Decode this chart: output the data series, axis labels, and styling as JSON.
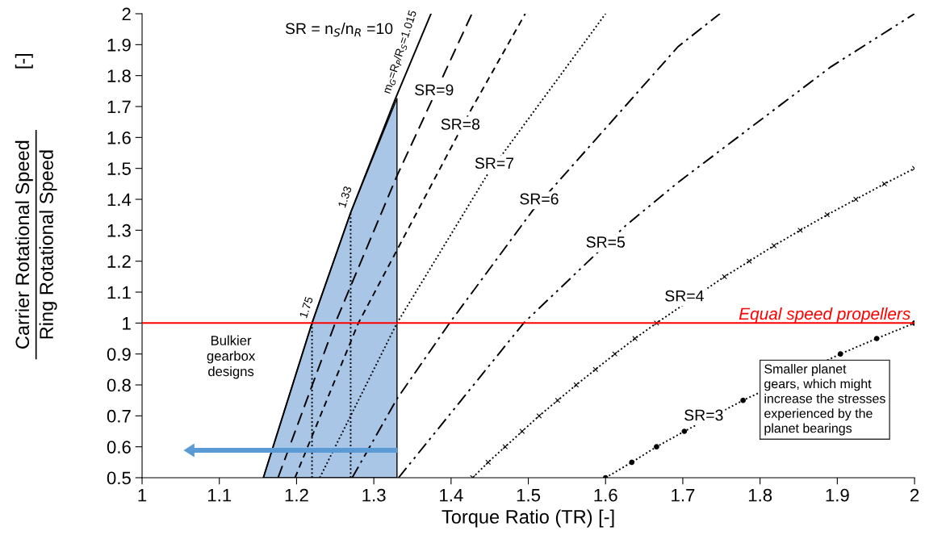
{
  "chart_data": {
    "type": "line",
    "xlabel": "Torque Ratio (TR) [-]",
    "ylabel": "Carrier Rotational Speed\nRing Rotational Speed\n[-]",
    "xlim": [
      1,
      2
    ],
    "xticks": [
      1,
      1.1,
      1.2,
      1.3,
      1.4,
      1.5,
      1.6,
      1.7,
      1.8,
      1.9,
      2
    ],
    "ylim": [
      0.5,
      2
    ],
    "yticks": [
      0.5,
      0.6,
      0.7,
      0.8,
      0.9,
      1,
      1.1,
      1.2,
      1.3,
      1.4,
      1.5,
      1.6,
      1.7,
      1.8,
      1.9,
      2
    ],
    "grid": false,
    "legend": false,
    "series": [
      {
        "type": "area",
        "color": "#a9c6e6",
        "x": [
          1.157,
          1.22,
          1.27,
          1.33
        ],
        "values": [
          0.5,
          1.0,
          1.357,
          1.726
        ]
      },
      {
        "name": "SR = n$_{S}$/n$_{R}$ =10",
        "color": "#000000",
        "line_style": "solid",
        "x": [
          1.157,
          1.22,
          1.27,
          1.328,
          1.374
        ],
        "values": [
          0.5,
          1.0,
          1.357,
          1.726,
          2.0
        ]
      },
      {
        "name": "SR=9",
        "color": "#000000",
        "line_style": "longdash",
        "x": [
          1.176,
          1.25,
          1.33,
          1.427
        ],
        "values": [
          0.5,
          1.0,
          1.476,
          2.0
        ]
      },
      {
        "name": "SR=8",
        "color": "#000000",
        "line_style": "dashed",
        "x": [
          1.198,
          1.28,
          1.33,
          1.426,
          1.496
        ],
        "values": [
          0.5,
          1.0,
          1.236,
          1.69,
          2.0
        ]
      },
      {
        "name": "SR=7",
        "color": "#000000",
        "line_style": "dotted",
        "x": [
          1.23,
          1.33,
          1.446,
          1.6
        ],
        "values": [
          0.5,
          1.0,
          1.476,
          2.0
        ]
      },
      {
        "name": "SR=6",
        "color": "#000000",
        "line_style": "dashdot",
        "x": [
          1.272,
          1.33,
          1.398,
          1.506,
          1.694,
          1.748
        ],
        "values": [
          0.5,
          0.755,
          1.0,
          1.365,
          1.894,
          2.0
        ]
      },
      {
        "name": "SR=5",
        "color": "#000000",
        "line_style": "dashdotdot",
        "x": [
          1.332,
          1.494,
          1.626,
          1.694,
          1.892,
          2.0
        ],
        "values": [
          0.5,
          1.0,
          1.315,
          1.455,
          1.829,
          2.0
        ]
      },
      {
        "name": "SR=4",
        "color": "#000000",
        "line_style": "dotted",
        "marker": "cross",
        "x": [
          1.428,
          1.448,
          1.47,
          1.492,
          1.514,
          1.538,
          1.562,
          1.587,
          1.612,
          1.638,
          1.666,
          1.754,
          1.786,
          1.818,
          1.852,
          1.887,
          1.924,
          1.961,
          2.0
        ],
        "values": [
          0.5,
          0.55,
          0.6,
          0.65,
          0.7,
          0.75,
          0.8,
          0.85,
          0.9,
          0.95,
          1.0,
          1.15,
          1.2,
          1.25,
          1.3,
          1.35,
          1.4,
          1.45,
          1.5
        ]
      },
      {
        "name": "SR=3",
        "color": "#000000",
        "line_style": "dotted",
        "marker": "circle",
        "x": [
          1.6,
          1.634,
          1.666,
          1.702,
          1.778,
          1.904,
          1.951,
          2.0
        ],
        "values": [
          0.5,
          0.55,
          0.6,
          0.65,
          0.75,
          0.9,
          0.95,
          1.0
        ]
      },
      {
        "color": "#000000",
        "line_style": "dotted",
        "x": [
          1.22,
          1.22
        ],
        "values": [
          0.5,
          1.0
        ]
      },
      {
        "color": "#000000",
        "line_style": "dotted",
        "x": [
          1.27,
          1.27
        ],
        "values": [
          0.5,
          1.357
        ]
      }
    ],
    "ref_lines": [
      {
        "axis": "y",
        "value": 1,
        "label": "Equal speed propellers",
        "color": "#ff0000"
      }
    ],
    "annotations": [
      {
        "text": "1.75",
        "x": 1.22,
        "y": 1.0
      },
      {
        "text": "1.33",
        "x": 1.27,
        "y": 1.357
      },
      {
        "text": "m$_{G}$=R$_{P}$/R$_{S}$=1.015",
        "x": 1.328,
        "y": 1.726
      },
      "Bulkier\ngearbox\ndesigns",
      "Smaller planet\ngears, which might\nincrease the stresses\nexperienced by the\nplanet bearings"
    ]
  }
}
